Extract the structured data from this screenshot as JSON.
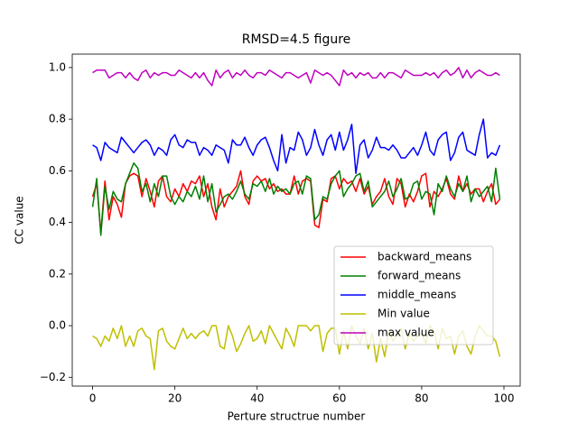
{
  "chart_data": {
    "type": "line",
    "title": "RMSD=4.5 figure",
    "xlabel": "Perture structrue number",
    "ylabel": "CC value",
    "x": [
      0,
      1,
      2,
      3,
      4,
      5,
      6,
      7,
      8,
      9,
      10,
      11,
      12,
      13,
      14,
      15,
      16,
      17,
      18,
      19,
      20,
      21,
      22,
      23,
      24,
      25,
      26,
      27,
      28,
      29,
      30,
      31,
      32,
      33,
      34,
      35,
      36,
      37,
      38,
      39,
      40,
      41,
      42,
      43,
      44,
      45,
      46,
      47,
      48,
      49,
      50,
      51,
      52,
      53,
      54,
      55,
      56,
      57,
      58,
      59,
      60,
      61,
      62,
      63,
      64,
      65,
      66,
      67,
      68,
      69,
      70,
      71,
      72,
      73,
      74,
      75,
      76,
      77,
      78,
      79,
      80,
      81,
      82,
      83,
      84,
      85,
      86,
      87,
      88,
      89,
      90,
      91,
      92,
      93,
      94,
      95,
      96,
      97,
      98,
      99
    ],
    "series": [
      {
        "name": "backward_means",
        "color": "#ff0000",
        "values": [
          0.5,
          0.55,
          0.36,
          0.56,
          0.41,
          0.5,
          0.47,
          0.42,
          0.55,
          0.58,
          0.59,
          0.58,
          0.5,
          0.57,
          0.52,
          0.46,
          0.56,
          0.58,
          0.5,
          0.48,
          0.53,
          0.5,
          0.55,
          0.52,
          0.56,
          0.55,
          0.58,
          0.5,
          0.55,
          0.46,
          0.41,
          0.53,
          0.46,
          0.5,
          0.52,
          0.54,
          0.6,
          0.5,
          0.47,
          0.56,
          0.58,
          0.56,
          0.57,
          0.53,
          0.55,
          0.52,
          0.53,
          0.51,
          0.51,
          0.58,
          0.51,
          0.56,
          0.57,
          0.56,
          0.39,
          0.38,
          0.49,
          0.48,
          0.57,
          0.58,
          0.53,
          0.57,
          0.55,
          0.56,
          0.52,
          0.57,
          0.51,
          0.54,
          0.47,
          0.5,
          0.52,
          0.57,
          0.5,
          0.47,
          0.57,
          0.55,
          0.46,
          0.51,
          0.48,
          0.52,
          0.58,
          0.59,
          0.46,
          0.52,
          0.5,
          0.53,
          0.57,
          0.51,
          0.49,
          0.58,
          0.52,
          0.55,
          0.51,
          0.53,
          0.53,
          0.48,
          0.52,
          0.55,
          0.47,
          0.49
        ]
      },
      {
        "name": "forward_means",
        "color": "#008000",
        "values": [
          0.46,
          0.57,
          0.35,
          0.54,
          0.45,
          0.52,
          0.49,
          0.48,
          0.55,
          0.59,
          0.63,
          0.61,
          0.52,
          0.55,
          0.48,
          0.55,
          0.5,
          0.58,
          0.58,
          0.5,
          0.47,
          0.5,
          0.48,
          0.52,
          0.5,
          0.54,
          0.49,
          0.58,
          0.48,
          0.55,
          0.44,
          0.47,
          0.5,
          0.51,
          0.49,
          0.52,
          0.56,
          0.51,
          0.49,
          0.55,
          0.54,
          0.56,
          0.52,
          0.57,
          0.51,
          0.54,
          0.52,
          0.53,
          0.51,
          0.55,
          0.56,
          0.51,
          0.58,
          0.57,
          0.41,
          0.43,
          0.5,
          0.49,
          0.55,
          0.58,
          0.6,
          0.5,
          0.53,
          0.55,
          0.58,
          0.59,
          0.52,
          0.56,
          0.46,
          0.48,
          0.5,
          0.52,
          0.56,
          0.5,
          0.53,
          0.57,
          0.49,
          0.5,
          0.55,
          0.56,
          0.49,
          0.52,
          0.51,
          0.43,
          0.55,
          0.52,
          0.58,
          0.53,
          0.5,
          0.55,
          0.52,
          0.58,
          0.48,
          0.53,
          0.5,
          0.52,
          0.54,
          0.48,
          0.61,
          0.49
        ]
      },
      {
        "name": "middle_means",
        "color": "#0000ff",
        "values": [
          0.7,
          0.69,
          0.64,
          0.71,
          0.69,
          0.68,
          0.67,
          0.73,
          0.71,
          0.69,
          0.67,
          0.69,
          0.71,
          0.72,
          0.7,
          0.66,
          0.69,
          0.68,
          0.66,
          0.72,
          0.74,
          0.7,
          0.69,
          0.72,
          0.71,
          0.71,
          0.66,
          0.69,
          0.68,
          0.66,
          0.7,
          0.69,
          0.68,
          0.63,
          0.72,
          0.7,
          0.7,
          0.73,
          0.69,
          0.66,
          0.7,
          0.72,
          0.73,
          0.69,
          0.64,
          0.6,
          0.74,
          0.63,
          0.69,
          0.68,
          0.75,
          0.72,
          0.66,
          0.69,
          0.76,
          0.7,
          0.66,
          0.72,
          0.74,
          0.68,
          0.75,
          0.68,
          0.72,
          0.78,
          0.59,
          0.7,
          0.72,
          0.65,
          0.68,
          0.73,
          0.69,
          0.69,
          0.68,
          0.7,
          0.68,
          0.65,
          0.65,
          0.67,
          0.69,
          0.66,
          0.7,
          0.75,
          0.68,
          0.66,
          0.72,
          0.74,
          0.75,
          0.64,
          0.67,
          0.73,
          0.75,
          0.68,
          0.67,
          0.66,
          0.74,
          0.8,
          0.65,
          0.67,
          0.66,
          0.7
        ]
      },
      {
        "name": "Min value",
        "color": "#bfbf00",
        "values": [
          -0.04,
          -0.05,
          -0.08,
          -0.04,
          -0.06,
          -0.01,
          -0.05,
          0.0,
          -0.08,
          -0.04,
          -0.08,
          -0.02,
          -0.01,
          -0.04,
          -0.05,
          -0.17,
          -0.02,
          -0.01,
          -0.06,
          -0.08,
          -0.09,
          -0.05,
          -0.01,
          -0.05,
          -0.03,
          -0.05,
          -0.03,
          -0.02,
          -0.04,
          0.0,
          0.0,
          -0.08,
          -0.09,
          0.0,
          -0.04,
          -0.1,
          -0.07,
          -0.03,
          0.0,
          -0.06,
          -0.05,
          -0.02,
          -0.07,
          0.0,
          -0.03,
          -0.06,
          -0.09,
          -0.01,
          -0.04,
          -0.08,
          0.0,
          0.0,
          0.0,
          -0.02,
          0.0,
          0.0,
          -0.1,
          -0.03,
          -0.01,
          -0.01,
          -0.11,
          -0.02,
          -0.09,
          0.0,
          -0.04,
          -0.07,
          -0.01,
          -0.09,
          -0.03,
          -0.14,
          -0.05,
          -0.12,
          -0.02,
          -0.06,
          -0.04,
          -0.01,
          -0.09,
          -0.03,
          -0.06,
          -0.04,
          -0.03,
          -0.07,
          0.0,
          -0.02,
          -0.09,
          -0.01,
          -0.05,
          -0.04,
          -0.11,
          -0.04,
          -0.02,
          -0.08,
          -0.11,
          -0.04,
          0.0,
          -0.02,
          -0.04,
          -0.04,
          -0.06,
          -0.12
        ]
      },
      {
        "name": "max value",
        "color": "#bf00bf",
        "values": [
          0.98,
          0.99,
          0.99,
          0.99,
          0.96,
          0.97,
          0.98,
          0.98,
          0.96,
          0.98,
          0.96,
          0.95,
          0.98,
          0.99,
          0.96,
          0.98,
          0.97,
          0.98,
          0.98,
          0.97,
          0.97,
          0.99,
          0.98,
          0.97,
          0.96,
          0.98,
          0.96,
          0.98,
          0.95,
          0.93,
          0.99,
          0.96,
          0.98,
          0.99,
          0.96,
          0.98,
          0.97,
          0.99,
          0.97,
          0.96,
          0.98,
          0.98,
          0.97,
          0.99,
          0.98,
          0.97,
          0.96,
          0.98,
          0.98,
          0.97,
          0.96,
          0.97,
          0.98,
          0.94,
          0.99,
          0.98,
          0.97,
          0.98,
          0.97,
          0.95,
          0.93,
          0.99,
          0.97,
          0.98,
          0.96,
          0.98,
          0.97,
          0.98,
          0.96,
          0.96,
          0.98,
          0.96,
          0.98,
          0.98,
          0.97,
          0.96,
          0.99,
          0.98,
          0.97,
          0.97,
          0.97,
          0.98,
          0.97,
          0.98,
          0.96,
          0.98,
          0.99,
          0.97,
          0.98,
          1.0,
          0.96,
          0.99,
          0.96,
          0.98,
          0.99,
          0.98,
          0.97,
          0.97,
          0.98,
          0.97
        ]
      }
    ],
    "xlim": [
      -4.95,
      103.95
    ],
    "ylim": [
      -0.234,
      1.052
    ],
    "xticks": [
      0,
      20,
      40,
      60,
      80,
      100
    ],
    "yticks": [
      {
        "value": -0.2,
        "label": "−0.2"
      },
      {
        "value": 0,
        "label": "0.0"
      },
      0.2,
      0.4,
      0.6,
      0.8,
      {
        "value": 1,
        "label": "1.0"
      }
    ],
    "legend": "lower right"
  }
}
